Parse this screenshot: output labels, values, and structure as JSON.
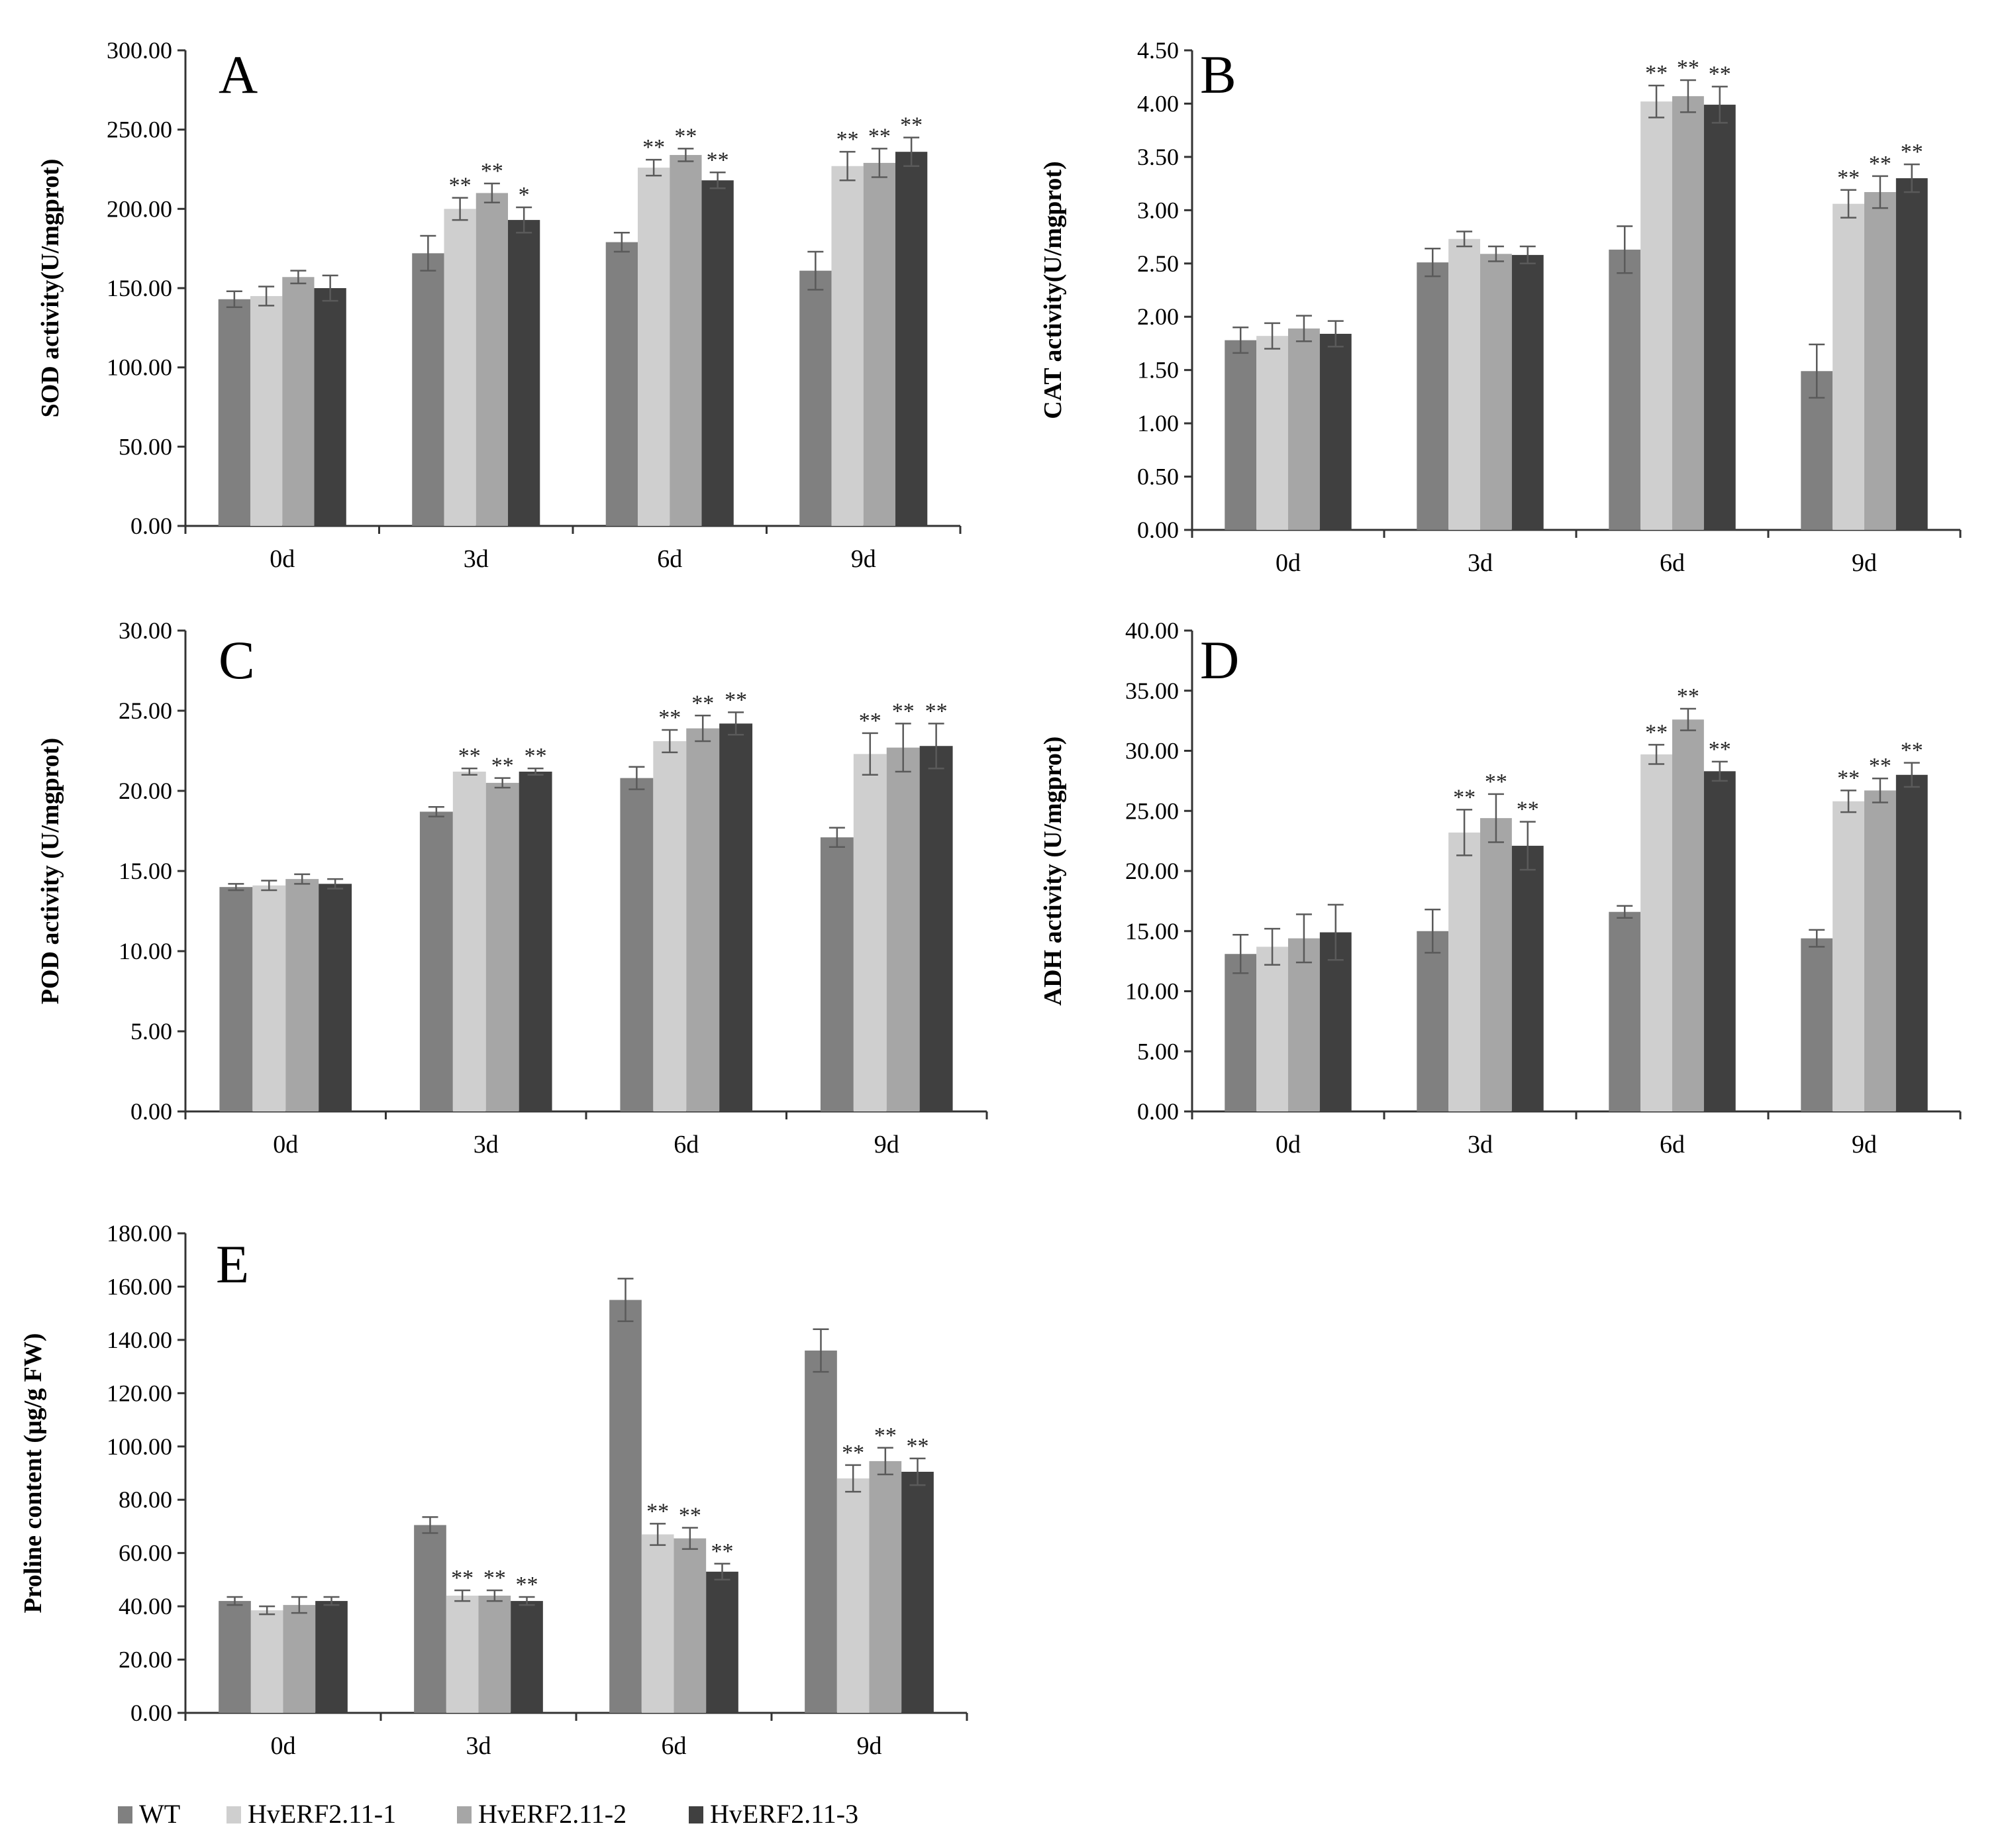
{
  "colors": {
    "WT": "#808080",
    "HvERF2.11-1": "#cfcfcf",
    "HvERF2.11-2": "#a6a6a6",
    "HvERF2.11-3": "#404040",
    "axis": "#333333",
    "errorbar": "#5a5a5a"
  },
  "legend": {
    "entries": [
      "WT",
      "HvERF2.11-1",
      "HvERF2.11-2",
      "HvERF2.11-3"
    ]
  },
  "chart_data": [
    {
      "panel": "A",
      "type": "bar",
      "ylabel": "SOD activity(U/mgprot)",
      "ylim": [
        0,
        300
      ],
      "yticks": [
        "0.00",
        "50.00",
        "100.00",
        "150.00",
        "200.00",
        "250.00",
        "300.00"
      ],
      "categories": [
        "0d",
        "3d",
        "6d",
        "9d"
      ],
      "series": [
        {
          "name": "WT",
          "values": [
            143,
            172,
            179,
            161
          ],
          "errors": [
            5,
            11,
            6,
            12
          ],
          "sig": [
            "",
            "",
            "",
            ""
          ]
        },
        {
          "name": "HvERF2.11-1",
          "values": [
            145,
            200,
            226,
            227
          ],
          "errors": [
            6,
            7,
            5,
            9
          ],
          "sig": [
            "",
            "**",
            "**",
            "**"
          ]
        },
        {
          "name": "HvERF2.11-2",
          "values": [
            157,
            210,
            234,
            229
          ],
          "errors": [
            4,
            6,
            4,
            9
          ],
          "sig": [
            "",
            "**",
            "**",
            "**"
          ]
        },
        {
          "name": "HvERF2.11-3",
          "values": [
            150,
            193,
            218,
            236
          ],
          "errors": [
            8,
            8,
            5,
            9
          ],
          "sig": [
            "",
            "*",
            "**",
            "**"
          ]
        }
      ]
    },
    {
      "panel": "B",
      "type": "bar",
      "ylabel": "CAT activity(U/mgprot)",
      "ylim": [
        0,
        4.5
      ],
      "yticks": [
        "0.00",
        "0.50",
        "1.00",
        "1.50",
        "2.00",
        "2.50",
        "3.00",
        "3.50",
        "4.00",
        "4.50"
      ],
      "categories": [
        "0d",
        "3d",
        "6d",
        "9d"
      ],
      "series": [
        {
          "name": "WT",
          "values": [
            1.78,
            2.51,
            2.63,
            1.49
          ],
          "errors": [
            0.12,
            0.13,
            0.22,
            0.25
          ],
          "sig": [
            "",
            "",
            "",
            ""
          ]
        },
        {
          "name": "HvERF2.11-1",
          "values": [
            1.82,
            2.73,
            4.02,
            3.06
          ],
          "errors": [
            0.12,
            0.07,
            0.15,
            0.13
          ],
          "sig": [
            "",
            "",
            "**",
            "**"
          ]
        },
        {
          "name": "HvERF2.11-2",
          "values": [
            1.89,
            2.59,
            4.07,
            3.17
          ],
          "errors": [
            0.12,
            0.07,
            0.15,
            0.15
          ],
          "sig": [
            "",
            "",
            "**",
            "**"
          ]
        },
        {
          "name": "HvERF2.11-3",
          "values": [
            1.84,
            2.58,
            3.99,
            3.3
          ],
          "errors": [
            0.12,
            0.08,
            0.17,
            0.13
          ],
          "sig": [
            "",
            "",
            "**",
            "**"
          ]
        }
      ]
    },
    {
      "panel": "C",
      "type": "bar",
      "ylabel": "POD activity (U/mgprot)",
      "ylim": [
        0,
        30
      ],
      "yticks": [
        "0.00",
        "5.00",
        "10.00",
        "15.00",
        "20.00",
        "25.00",
        "30.00"
      ],
      "categories": [
        "0d",
        "3d",
        "6d",
        "9d"
      ],
      "series": [
        {
          "name": "WT",
          "values": [
            14.0,
            18.7,
            20.8,
            17.1
          ],
          "errors": [
            0.2,
            0.3,
            0.7,
            0.6
          ],
          "sig": [
            "",
            "",
            "",
            ""
          ]
        },
        {
          "name": "HvERF2.11-1",
          "values": [
            14.1,
            21.2,
            23.1,
            22.3
          ],
          "errors": [
            0.3,
            0.2,
            0.7,
            1.3
          ],
          "sig": [
            "",
            "**",
            "**",
            "**"
          ]
        },
        {
          "name": "HvERF2.11-2",
          "values": [
            14.5,
            20.5,
            23.9,
            22.7
          ],
          "errors": [
            0.3,
            0.3,
            0.8,
            1.5
          ],
          "sig": [
            "",
            "**",
            "**",
            "**"
          ]
        },
        {
          "name": "HvERF2.11-3",
          "values": [
            14.2,
            21.2,
            24.2,
            22.8
          ],
          "errors": [
            0.3,
            0.2,
            0.7,
            1.4
          ],
          "sig": [
            "",
            "**",
            "**",
            "**"
          ]
        }
      ]
    },
    {
      "panel": "D",
      "type": "bar",
      "ylabel": "ADH activity  (U/mgprot)",
      "ylim": [
        0,
        40
      ],
      "yticks": [
        "0.00",
        "5.00",
        "10.00",
        "15.00",
        "20.00",
        "25.00",
        "30.00",
        "35.00",
        "40.00"
      ],
      "categories": [
        "0d",
        "3d",
        "6d",
        "9d"
      ],
      "series": [
        {
          "name": "WT",
          "values": [
            13.1,
            15.0,
            16.6,
            14.4
          ],
          "errors": [
            1.6,
            1.8,
            0.5,
            0.7
          ],
          "sig": [
            "",
            "",
            "",
            ""
          ]
        },
        {
          "name": "HvERF2.11-1",
          "values": [
            13.7,
            23.2,
            29.7,
            25.8
          ],
          "errors": [
            1.5,
            1.9,
            0.8,
            0.9
          ],
          "sig": [
            "",
            "**",
            "**",
            "**"
          ]
        },
        {
          "name": "HvERF2.11-2",
          "values": [
            14.4,
            24.4,
            32.6,
            26.7
          ],
          "errors": [
            2.0,
            2.0,
            0.9,
            1.0
          ],
          "sig": [
            "",
            "**",
            "**",
            "**"
          ]
        },
        {
          "name": "HvERF2.11-3",
          "values": [
            14.9,
            22.1,
            28.3,
            28.0
          ],
          "errors": [
            2.3,
            2.0,
            0.8,
            1.0
          ],
          "sig": [
            "",
            "**",
            "**",
            "**"
          ]
        }
      ]
    },
    {
      "panel": "E",
      "type": "bar",
      "ylabel": "Proline content (μg/g FW)",
      "ylim": [
        0,
        180
      ],
      "yticks": [
        "0.00",
        "20.00",
        "40.00",
        "60.00",
        "80.00",
        "100.00",
        "120.00",
        "140.00",
        "160.00",
        "180.00"
      ],
      "categories": [
        "0d",
        "3d",
        "6d",
        "9d"
      ],
      "series": [
        {
          "name": "WT",
          "values": [
            42,
            70.5,
            155,
            136
          ],
          "errors": [
            1.5,
            3.0,
            8.0,
            8.0
          ],
          "sig": [
            "",
            "",
            "",
            ""
          ]
        },
        {
          "name": "HvERF2.11-1",
          "values": [
            38.5,
            44,
            67,
            88
          ],
          "errors": [
            1.5,
            2.0,
            4.0,
            5.0
          ],
          "sig": [
            "",
            "**",
            "**",
            "**"
          ]
        },
        {
          "name": "HvERF2.11-2",
          "values": [
            40.5,
            44,
            65.5,
            94.5
          ],
          "errors": [
            3.0,
            2.0,
            4.0,
            5.0
          ],
          "sig": [
            "",
            "**",
            "**",
            "**"
          ]
        },
        {
          "name": "HvERF2.11-3",
          "values": [
            42,
            42,
            53,
            90.5
          ],
          "errors": [
            1.5,
            1.5,
            3.0,
            5.0
          ],
          "sig": [
            "",
            "**",
            "**",
            "**"
          ]
        }
      ]
    }
  ]
}
